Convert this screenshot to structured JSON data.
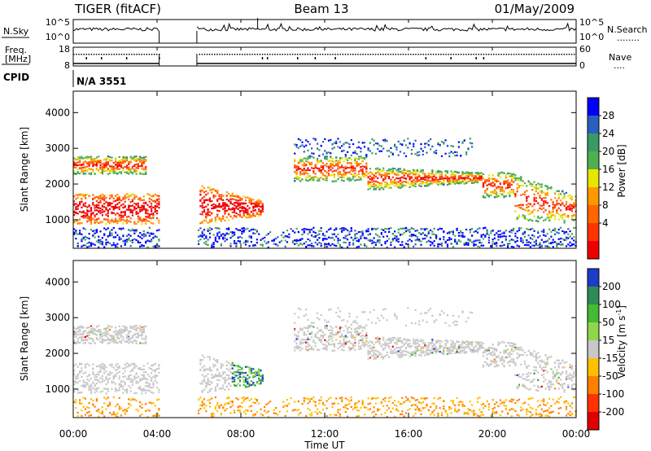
{
  "header": {
    "left": "TIGER (fitACF)",
    "center": "Beam 13",
    "right": "01/May/2009"
  },
  "noise_panel": {
    "label_left": "N.Sky",
    "tick_top": "10^5",
    "tick_bottom": "10^0",
    "label_right": "N.Search",
    "legend_right": "........"
  },
  "freq_panel": {
    "label_line1": "Freq.",
    "label_line2": "[MHz]",
    "tick_top": "18",
    "tick_bottom": "8",
    "right_tick_top": "60",
    "right_tick_bottom": "0",
    "label_right": "Nave",
    "legend_right": "....",
    "cpid_label": "CPID"
  },
  "cpid": {
    "value": "N/A 3551"
  },
  "chart_data": [
    {
      "type": "heatmap",
      "name": "power",
      "ylabel": "Slant Range [km]",
      "ylim": [
        200,
        4600
      ],
      "yticks": [
        "1000",
        "2000",
        "3000",
        "4000"
      ],
      "colorbar": {
        "label": "Power [dB]",
        "ticks": [
          "4",
          "8",
          "12",
          "16",
          "20",
          "24",
          "28"
        ],
        "colors": [
          "#0000ff",
          "#2a5fc0",
          "#3a9a64",
          "#50b050",
          "#e6e600",
          "#ff9900",
          "#ff6600",
          "#ff3300",
          "#ee0000"
        ]
      }
    },
    {
      "type": "heatmap",
      "name": "velocity",
      "ylabel": "Slant Range [km]",
      "ylim": [
        200,
        4600
      ],
      "yticks": [
        "1000",
        "2000",
        "3000",
        "4000"
      ],
      "colorbar": {
        "label_main": "Velocity [m s",
        "label_sup": "-1",
        "label_end": "]",
        "ticks": [
          "200",
          "100",
          "50",
          "15",
          "-15",
          "-50",
          "-100",
          "-200"
        ],
        "colors": [
          "#1e3cc8",
          "#2f8a5a",
          "#44bb33",
          "#8ed64a",
          "#c8c8c8",
          "#ffc000",
          "#ff8000",
          "#ff3300",
          "#e00000"
        ]
      }
    }
  ],
  "xaxis": {
    "ticks": [
      "00:00",
      "04:00",
      "08:00",
      "12:00",
      "16:00",
      "20:00",
      "00:00"
    ],
    "title": "Time UT"
  }
}
